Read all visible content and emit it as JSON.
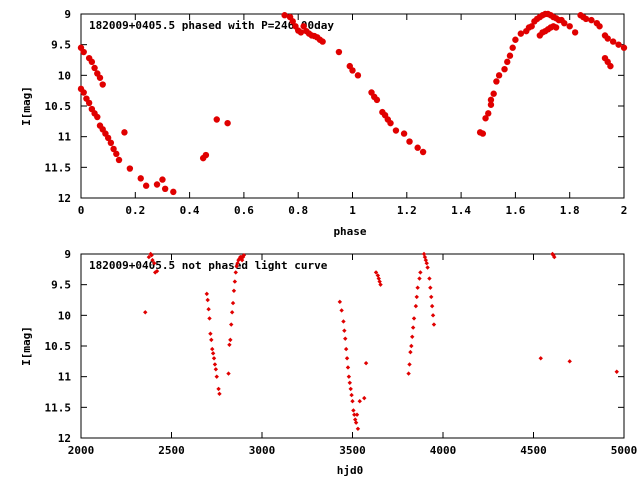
{
  "chart_data": [
    {
      "type": "scatter",
      "title": "182009+0405.5 phased with P=246.00day",
      "xlabel": "phase",
      "ylabel": "I[mag]",
      "xlim": [
        0,
        2
      ],
      "ylim": [
        12,
        9
      ],
      "y_inverted": true,
      "x_ticks": [
        0,
        0.2,
        0.4,
        0.6,
        0.8,
        1,
        1.2,
        1.4,
        1.6,
        1.8,
        2
      ],
      "x_tick_labels": [
        "0",
        "0.2",
        "0.4",
        "0.6",
        "0.8",
        "1",
        "1.2",
        "1.4",
        "1.6",
        "1.8",
        "2"
      ],
      "y_ticks": [
        9,
        9.5,
        10,
        10.5,
        11,
        11.5,
        12
      ],
      "y_tick_labels": [
        "9",
        "9.5",
        "10",
        "10.5",
        "11",
        "11.5",
        "12"
      ],
      "marker_color": "#e00000",
      "marker": "filled-circle",
      "grid": false,
      "points": [
        [
          0.0,
          9.55
        ],
        [
          0.01,
          9.62
        ],
        [
          0.03,
          9.72
        ],
        [
          0.04,
          9.78
        ],
        [
          0.05,
          9.88
        ],
        [
          0.06,
          9.97
        ],
        [
          0.07,
          10.04
        ],
        [
          0.08,
          10.15
        ],
        [
          0.0,
          10.22
        ],
        [
          0.01,
          10.28
        ],
        [
          0.02,
          10.38
        ],
        [
          0.03,
          10.45
        ],
        [
          0.04,
          10.55
        ],
        [
          0.05,
          10.62
        ],
        [
          0.06,
          10.68
        ],
        [
          0.07,
          10.82
        ],
        [
          0.08,
          10.88
        ],
        [
          0.09,
          10.95
        ],
        [
          0.1,
          11.02
        ],
        [
          0.11,
          11.1
        ],
        [
          0.12,
          11.2
        ],
        [
          0.13,
          11.28
        ],
        [
          0.14,
          11.38
        ],
        [
          0.16,
          10.93
        ],
        [
          0.18,
          11.52
        ],
        [
          0.22,
          11.68
        ],
        [
          0.24,
          11.8
        ],
        [
          0.28,
          11.78
        ],
        [
          0.3,
          11.7
        ],
        [
          0.31,
          11.85
        ],
        [
          0.34,
          11.9
        ],
        [
          0.45,
          11.35
        ],
        [
          0.46,
          11.3
        ],
        [
          0.5,
          10.72
        ],
        [
          0.54,
          10.78
        ],
        [
          0.75,
          9.02
        ],
        [
          0.77,
          9.05
        ],
        [
          0.78,
          9.12
        ],
        [
          0.79,
          9.2
        ],
        [
          0.8,
          9.27
        ],
        [
          0.81,
          9.3
        ],
        [
          0.82,
          9.2
        ],
        [
          0.83,
          9.28
        ],
        [
          0.84,
          9.32
        ],
        [
          0.85,
          9.35
        ],
        [
          0.86,
          9.36
        ],
        [
          0.87,
          9.38
        ],
        [
          0.88,
          9.42
        ],
        [
          0.89,
          9.45
        ],
        [
          0.95,
          9.62
        ],
        [
          0.99,
          9.85
        ],
        [
          1.0,
          9.92
        ],
        [
          1.02,
          10.0
        ],
        [
          1.07,
          10.28
        ],
        [
          1.08,
          10.35
        ],
        [
          1.09,
          10.4
        ],
        [
          1.11,
          10.6
        ],
        [
          1.12,
          10.65
        ],
        [
          1.13,
          10.72
        ],
        [
          1.14,
          10.78
        ],
        [
          1.16,
          10.9
        ],
        [
          1.19,
          10.95
        ],
        [
          1.21,
          11.08
        ],
        [
          1.24,
          11.18
        ],
        [
          1.26,
          11.25
        ],
        [
          1.47,
          10.93
        ],
        [
          1.48,
          10.95
        ],
        [
          1.49,
          10.7
        ],
        [
          1.5,
          10.62
        ],
        [
          1.51,
          10.48
        ],
        [
          1.51,
          10.4
        ],
        [
          1.52,
          10.3
        ],
        [
          1.53,
          10.1
        ],
        [
          1.54,
          10.0
        ],
        [
          1.56,
          9.9
        ],
        [
          1.57,
          9.78
        ],
        [
          1.58,
          9.68
        ],
        [
          1.59,
          9.55
        ],
        [
          1.6,
          9.42
        ],
        [
          1.62,
          9.32
        ],
        [
          1.64,
          9.28
        ],
        [
          1.65,
          9.22
        ],
        [
          1.66,
          9.2
        ],
        [
          1.67,
          9.12
        ],
        [
          1.68,
          9.08
        ],
        [
          1.69,
          9.05
        ],
        [
          1.7,
          9.02
        ],
        [
          1.71,
          9.0
        ],
        [
          1.72,
          9.0
        ],
        [
          1.73,
          9.02
        ],
        [
          1.74,
          9.05
        ],
        [
          1.75,
          9.07
        ],
        [
          1.76,
          9.1
        ],
        [
          1.69,
          9.35
        ],
        [
          1.7,
          9.3
        ],
        [
          1.71,
          9.28
        ],
        [
          1.72,
          9.25
        ],
        [
          1.73,
          9.22
        ],
        [
          1.74,
          9.2
        ],
        [
          1.75,
          9.22
        ],
        [
          1.77,
          9.1
        ],
        [
          1.78,
          9.15
        ],
        [
          1.8,
          9.2
        ],
        [
          1.82,
          9.3
        ],
        [
          1.84,
          9.02
        ],
        [
          1.85,
          9.05
        ],
        [
          1.86,
          9.08
        ],
        [
          1.88,
          9.1
        ],
        [
          1.9,
          9.15
        ],
        [
          1.91,
          9.2
        ],
        [
          1.93,
          9.35
        ],
        [
          1.94,
          9.4
        ],
        [
          1.96,
          9.45
        ],
        [
          1.98,
          9.5
        ],
        [
          2.0,
          9.55
        ],
        [
          1.93,
          9.72
        ],
        [
          1.94,
          9.78
        ],
        [
          1.95,
          9.85
        ]
      ]
    },
    {
      "type": "scatter",
      "title": "182009+0405.5 not phased light curve",
      "xlabel": "hjd0",
      "ylabel": "I[mag]",
      "xlim": [
        2000,
        5000
      ],
      "ylim": [
        12,
        9
      ],
      "y_inverted": true,
      "x_ticks": [
        2000,
        2500,
        3000,
        3500,
        4000,
        4500,
        5000
      ],
      "x_tick_labels": [
        "2000",
        "2500",
        "3000",
        "3500",
        "4000",
        "4500",
        "5000"
      ],
      "y_ticks": [
        9,
        9.5,
        10,
        10.5,
        11,
        11.5,
        12
      ],
      "y_tick_labels": [
        "9",
        "9.5",
        "10",
        "10.5",
        "11",
        "11.5",
        "12"
      ],
      "marker_color": "#e00000",
      "marker": "small-diamond",
      "grid": false,
      "points": [
        [
          2355,
          9.95
        ],
        [
          2375,
          9.05
        ],
        [
          2385,
          9.0
        ],
        [
          2390,
          9.02
        ],
        [
          2395,
          9.1
        ],
        [
          2405,
          9.15
        ],
        [
          2410,
          9.3
        ],
        [
          2420,
          9.28
        ],
        [
          2695,
          9.65
        ],
        [
          2700,
          9.75
        ],
        [
          2705,
          9.9
        ],
        [
          2710,
          10.05
        ],
        [
          2715,
          10.3
        ],
        [
          2720,
          10.4
        ],
        [
          2725,
          10.55
        ],
        [
          2730,
          10.62
        ],
        [
          2735,
          10.7
        ],
        [
          2740,
          10.8
        ],
        [
          2745,
          10.88
        ],
        [
          2750,
          11.0
        ],
        [
          2760,
          11.2
        ],
        [
          2765,
          11.28
        ],
        [
          2815,
          10.95
        ],
        [
          2820,
          10.48
        ],
        [
          2825,
          10.4
        ],
        [
          2830,
          10.15
        ],
        [
          2835,
          9.95
        ],
        [
          2840,
          9.8
        ],
        [
          2845,
          9.6
        ],
        [
          2850,
          9.45
        ],
        [
          2855,
          9.3
        ],
        [
          2860,
          9.2
        ],
        [
          2865,
          9.15
        ],
        [
          2870,
          9.1
        ],
        [
          2875,
          9.08
        ],
        [
          2880,
          9.05
        ],
        [
          2885,
          9.05
        ],
        [
          2890,
          9.1
        ],
        [
          2895,
          9.05
        ],
        [
          2900,
          9.02
        ],
        [
          3430,
          9.78
        ],
        [
          3440,
          9.92
        ],
        [
          3450,
          10.1
        ],
        [
          3455,
          10.25
        ],
        [
          3460,
          10.38
        ],
        [
          3465,
          10.55
        ],
        [
          3470,
          10.7
        ],
        [
          3475,
          10.85
        ],
        [
          3480,
          11.0
        ],
        [
          3485,
          11.1
        ],
        [
          3490,
          11.2
        ],
        [
          3495,
          11.3
        ],
        [
          3500,
          11.4
        ],
        [
          3505,
          11.55
        ],
        [
          3510,
          11.62
        ],
        [
          3515,
          11.7
        ],
        [
          3520,
          11.75
        ],
        [
          3530,
          11.85
        ],
        [
          3525,
          11.62
        ],
        [
          3540,
          11.4
        ],
        [
          3565,
          11.35
        ],
        [
          3575,
          10.78
        ],
        [
          3630,
          9.3
        ],
        [
          3640,
          9.35
        ],
        [
          3645,
          9.4
        ],
        [
          3650,
          9.45
        ],
        [
          3655,
          9.5
        ],
        [
          3810,
          10.95
        ],
        [
          3815,
          10.8
        ],
        [
          3820,
          10.6
        ],
        [
          3825,
          10.5
        ],
        [
          3830,
          10.35
        ],
        [
          3835,
          10.2
        ],
        [
          3840,
          10.05
        ],
        [
          3850,
          9.85
        ],
        [
          3855,
          9.7
        ],
        [
          3860,
          9.55
        ],
        [
          3870,
          9.4
        ],
        [
          3875,
          9.3
        ],
        [
          3895,
          9.0
        ],
        [
          3900,
          9.05
        ],
        [
          3905,
          9.1
        ],
        [
          3910,
          9.15
        ],
        [
          3915,
          9.22
        ],
        [
          3925,
          9.4
        ],
        [
          3930,
          9.55
        ],
        [
          3935,
          9.7
        ],
        [
          3940,
          9.85
        ],
        [
          3945,
          10.0
        ],
        [
          3950,
          10.15
        ],
        [
          4540,
          10.7
        ],
        [
          4605,
          9.0
        ],
        [
          4610,
          9.02
        ],
        [
          4615,
          9.05
        ],
        [
          4700,
          10.75
        ],
        [
          4960,
          10.92
        ]
      ]
    }
  ]
}
